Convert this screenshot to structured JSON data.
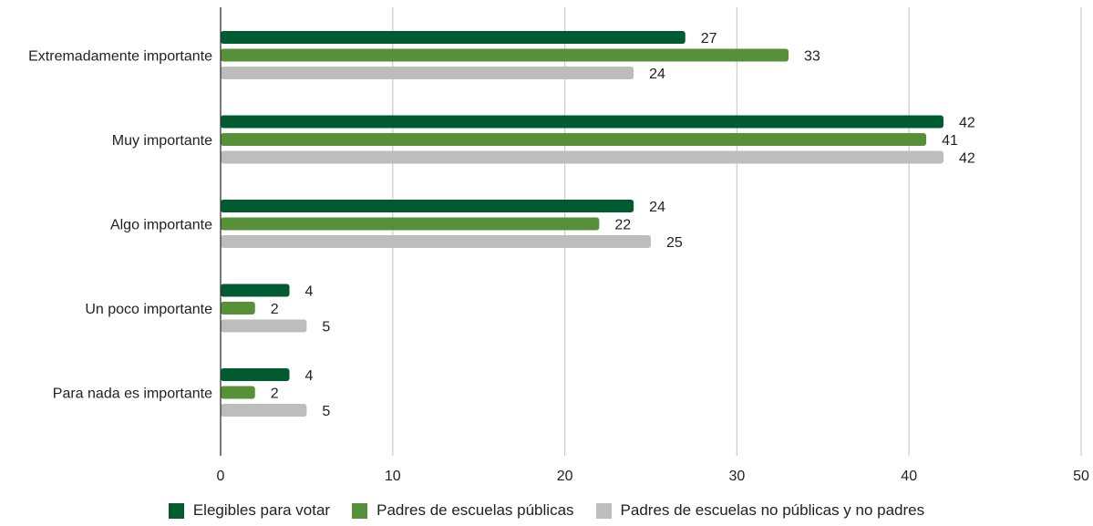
{
  "chart_data": {
    "type": "bar",
    "orientation": "horizontal",
    "categories": [
      "Extremadamente importante",
      "Muy importante",
      "Algo importante",
      "Un poco importante",
      "Para nada es importante"
    ],
    "series": [
      {
        "name": "Elegibles para votar",
        "color": "#005c30",
        "values": [
          27,
          42,
          24,
          4,
          4
        ]
      },
      {
        "name": "Padres de escuelas públicas",
        "color": "#56913a",
        "values": [
          33,
          41,
          22,
          2,
          2
        ]
      },
      {
        "name": "Padres de escuelas no públicas y no padres",
        "color": "#bdbdbd",
        "values": [
          24,
          42,
          25,
          5,
          5
        ]
      }
    ],
    "xlim": [
      0,
      50
    ],
    "x_ticks": [
      0,
      10,
      20,
      30,
      40,
      50
    ],
    "grid": true,
    "data_labels": true,
    "legend_position": "bottom"
  }
}
